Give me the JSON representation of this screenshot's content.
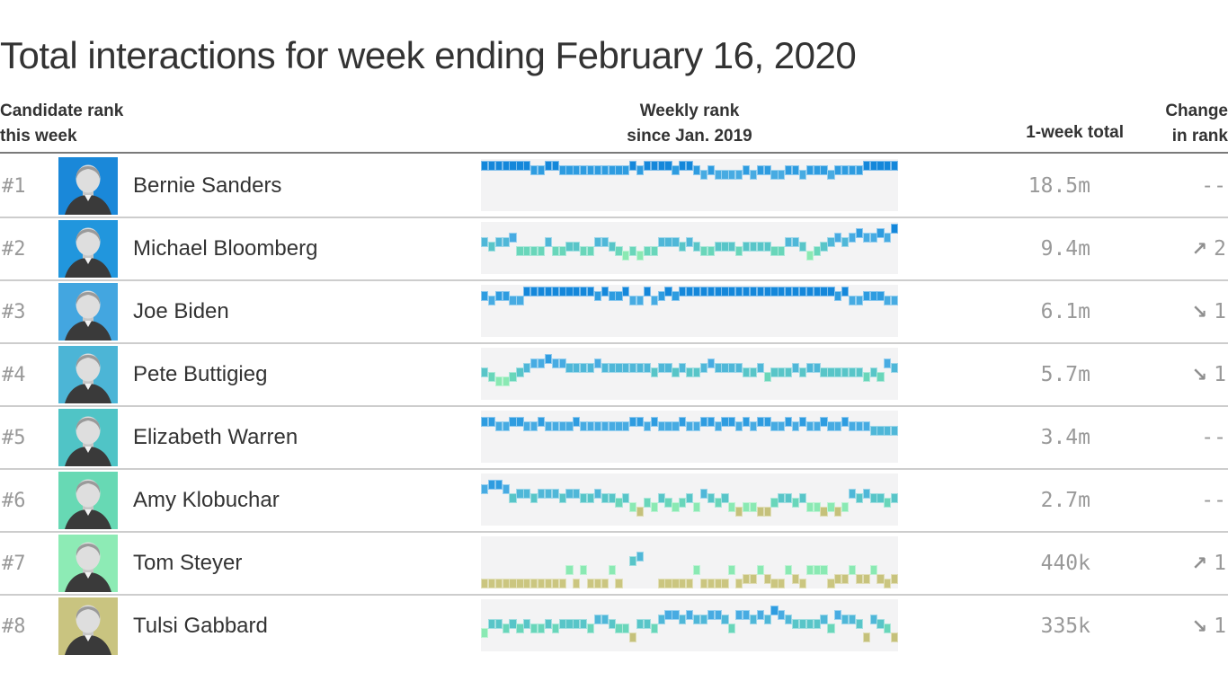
{
  "title": "Total interactions for week ending February 16, 2020",
  "header": {
    "candidate_line1": "Candidate rank",
    "candidate_line2": "this week",
    "weekly_line1": "Weekly rank",
    "weekly_line2": "since Jan. 2019",
    "total": "1-week total",
    "change_line1": "Change",
    "change_line2": "in rank"
  },
  "palette": {
    "1": "#1487da",
    "2": "#2e9ce0",
    "3": "#47abe2",
    "4": "#4fb7d8",
    "5": "#58c5c8",
    "6": "#69d6ba",
    "7": "#8ae9b3",
    "8": "#c5c17b",
    "9": "#c8c37d",
    "10": "#cbc680"
  },
  "chart_data": {
    "type": "table",
    "title": "Total interactions for week ending February 16, 2020",
    "x_range": "weekly, since Jan. 2019 (59 weeks)",
    "weeks": 59,
    "rank_scale": [
      1,
      10
    ],
    "rows": [
      {
        "rank_label": "#1",
        "name": "Bernie Sanders",
        "avatar_color": "#1a88d9",
        "total": "18.5m",
        "change_arrow": "",
        "change_value": "--",
        "weekly_ranks": [
          1,
          1,
          1,
          1,
          1,
          1,
          1,
          2,
          2,
          1,
          1,
          2,
          2,
          2,
          2,
          2,
          2,
          2,
          2,
          2,
          2,
          1,
          2,
          1,
          1,
          1,
          1,
          2,
          1,
          1,
          2,
          3,
          2,
          3,
          3,
          3,
          3,
          2,
          3,
          2,
          2,
          3,
          3,
          2,
          2,
          3,
          2,
          2,
          2,
          3,
          2,
          2,
          2,
          2,
          1,
          1,
          1,
          1,
          1
        ]
      },
      {
        "rank_label": "#2",
        "name": "Michael Bloomberg",
        "avatar_color": "#2196dd",
        "total": "9.4m",
        "change_arrow": "↗",
        "change_value": "2",
        "weekly_ranks": [
          4,
          5,
          4,
          4,
          3,
          6,
          6,
          6,
          6,
          4,
          6,
          6,
          5,
          5,
          6,
          6,
          4,
          4,
          5,
          6,
          7,
          6,
          7,
          6,
          6,
          4,
          4,
          4,
          5,
          4,
          5,
          6,
          6,
          5,
          5,
          5,
          6,
          5,
          5,
          5,
          5,
          6,
          6,
          4,
          4,
          5,
          7,
          6,
          5,
          4,
          3,
          4,
          3,
          2,
          3,
          3,
          2,
          3,
          1
        ]
      },
      {
        "rank_label": "#3",
        "name": "Joe Biden",
        "avatar_color": "#43a6e0",
        "total": "6.1m",
        "change_arrow": "↘",
        "change_value": "1",
        "weekly_ranks": [
          2,
          3,
          2,
          2,
          3,
          3,
          1,
          1,
          1,
          1,
          1,
          1,
          1,
          1,
          1,
          1,
          2,
          1,
          2,
          2,
          1,
          3,
          3,
          1,
          3,
          2,
          1,
          2,
          1,
          1,
          1,
          1,
          1,
          1,
          1,
          1,
          1,
          1,
          1,
          1,
          1,
          1,
          1,
          1,
          1,
          1,
          1,
          1,
          1,
          1,
          2,
          1,
          3,
          3,
          2,
          2,
          2,
          3,
          3
        ]
      },
      {
        "rank_label": "#4",
        "name": "Pete Buttigieg",
        "avatar_color": "#4cb5d6",
        "total": "5.7m",
        "change_arrow": "↘",
        "change_value": "1",
        "weekly_ranks": [
          5,
          6,
          7,
          7,
          6,
          5,
          4,
          3,
          3,
          2,
          3,
          3,
          4,
          4,
          4,
          4,
          3,
          4,
          4,
          4,
          4,
          4,
          4,
          4,
          5,
          4,
          4,
          5,
          4,
          5,
          5,
          4,
          3,
          4,
          4,
          4,
          4,
          5,
          5,
          4,
          6,
          5,
          5,
          5,
          4,
          5,
          4,
          4,
          5,
          5,
          5,
          5,
          5,
          5,
          6,
          5,
          6,
          3,
          4
        ]
      },
      {
        "rank_label": "#5",
        "name": "Elizabeth Warren",
        "avatar_color": "#50c4c6",
        "total": "3.4m",
        "change_arrow": "",
        "change_value": "--",
        "weekly_ranks": [
          2,
          2,
          3,
          3,
          2,
          2,
          3,
          3,
          2,
          3,
          3,
          3,
          3,
          2,
          3,
          3,
          3,
          3,
          3,
          3,
          3,
          2,
          2,
          3,
          2,
          3,
          3,
          3,
          2,
          3,
          3,
          2,
          2,
          3,
          2,
          2,
          3,
          2,
          3,
          2,
          2,
          3,
          3,
          2,
          3,
          2,
          3,
          3,
          2,
          3,
          3,
          2,
          3,
          3,
          3,
          4,
          4,
          4,
          4
        ]
      },
      {
        "rank_label": "#6",
        "name": "Amy Klobuchar",
        "avatar_color": "#67d9b4",
        "total": "2.7m",
        "change_arrow": "",
        "change_value": "--",
        "weekly_ranks": [
          3,
          2,
          2,
          3,
          5,
          4,
          4,
          5,
          4,
          4,
          4,
          5,
          4,
          4,
          5,
          5,
          4,
          5,
          5,
          6,
          5,
          7,
          8,
          6,
          7,
          5,
          6,
          7,
          6,
          5,
          7,
          4,
          5,
          6,
          5,
          7,
          8,
          7,
          7,
          8,
          8,
          6,
          5,
          5,
          6,
          5,
          7,
          7,
          8,
          7,
          8,
          7,
          4,
          5,
          4,
          5,
          5,
          6,
          5
        ]
      },
      {
        "rank_label": "#7",
        "name": "Tom Steyer",
        "avatar_color": "#8debb5",
        "total": "440k",
        "change_arrow": "↗",
        "change_value": "1",
        "weekly_ranks": [
          10,
          10,
          10,
          10,
          10,
          10,
          10,
          10,
          10,
          10,
          10,
          10,
          7,
          10,
          7,
          10,
          10,
          10,
          7,
          10,
          0,
          5,
          4,
          0,
          0,
          10,
          10,
          10,
          10,
          10,
          7,
          10,
          10,
          10,
          10,
          7,
          10,
          9,
          9,
          7,
          9,
          10,
          10,
          7,
          9,
          10,
          7,
          7,
          7,
          10,
          9,
          9,
          7,
          9,
          9,
          7,
          9,
          10,
          9
        ]
      },
      {
        "rank_label": "#8",
        "name": "Tulsi Gabbard",
        "avatar_color": "#c9c480",
        "total": "335k",
        "change_arrow": "↘",
        "change_value": "1",
        "weekly_ranks": [
          7,
          5,
          5,
          6,
          5,
          6,
          5,
          6,
          6,
          5,
          6,
          5,
          5,
          5,
          5,
          6,
          4,
          4,
          5,
          6,
          6,
          8,
          5,
          5,
          6,
          4,
          3,
          3,
          4,
          3,
          4,
          4,
          3,
          3,
          4,
          6,
          3,
          3,
          4,
          3,
          4,
          2,
          3,
          4,
          5,
          5,
          5,
          5,
          4,
          6,
          3,
          4,
          4,
          5,
          8,
          4,
          5,
          6,
          8
        ]
      }
    ]
  }
}
